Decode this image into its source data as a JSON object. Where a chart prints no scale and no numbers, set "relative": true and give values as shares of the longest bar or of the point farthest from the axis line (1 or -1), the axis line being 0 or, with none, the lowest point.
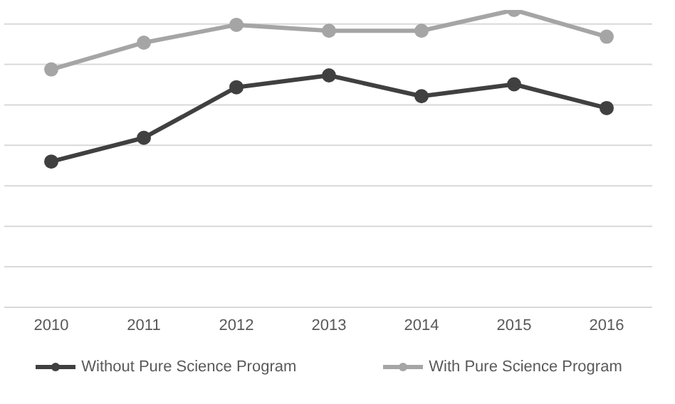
{
  "chart_data": {
    "type": "line",
    "relative": true,
    "categories": [
      "2010",
      "2011",
      "2012",
      "2013",
      "2014",
      "2015",
      "2016"
    ],
    "series": [
      {
        "name": "Without Pure Science Program",
        "color": "#404040",
        "values": [
          0.49,
          0.57,
          0.74,
          0.78,
          0.71,
          0.75,
          0.67
        ]
      },
      {
        "name": "With Pure Science Program",
        "color": "#a5a5a5",
        "values": [
          0.8,
          0.89,
          0.95,
          0.93,
          0.93,
          1,
          0.91
        ]
      }
    ],
    "grid": "y",
    "legend": "bottom",
    "marker": "circle",
    "line_style": "solid"
  }
}
